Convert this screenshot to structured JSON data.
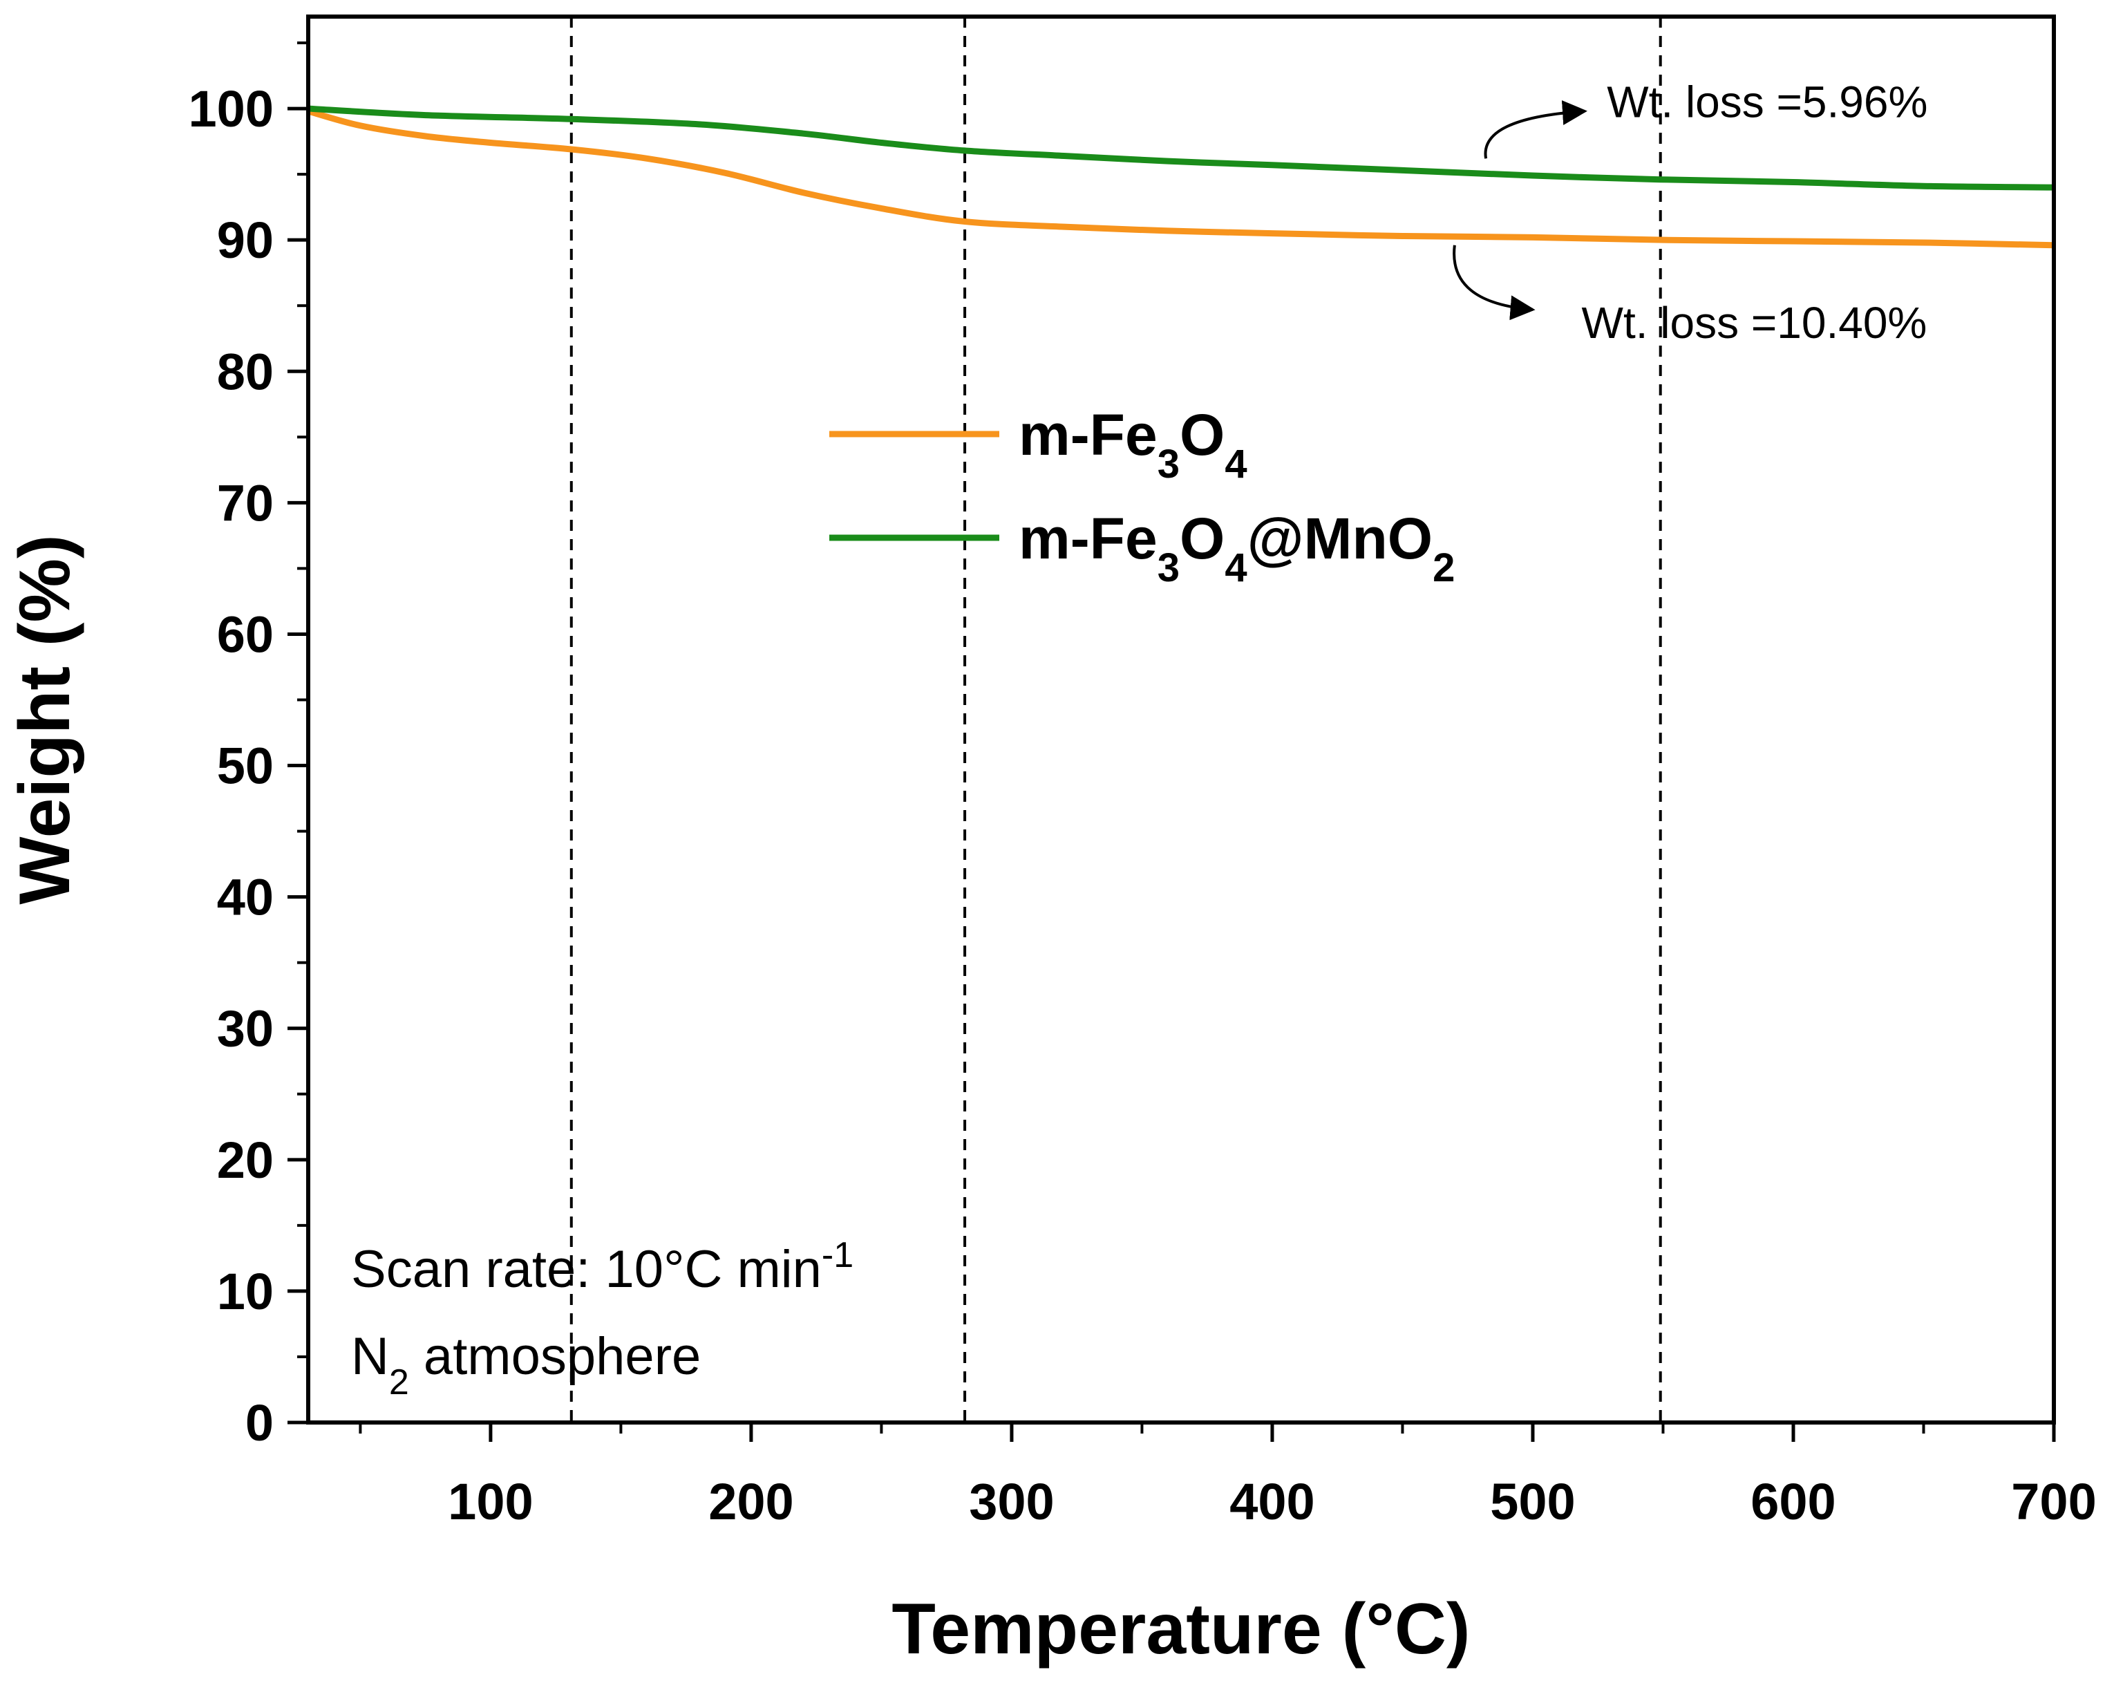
{
  "chart_data": {
    "type": "line",
    "xlabel": "Temperature (°C)",
    "ylabel": "Weight (%)",
    "xlim": [
      30,
      700
    ],
    "ylim": [
      0,
      107
    ],
    "x_ticks": [
      100,
      200,
      300,
      400,
      500,
      600,
      700
    ],
    "y_ticks": [
      0,
      10,
      20,
      30,
      40,
      50,
      60,
      70,
      80,
      90,
      100
    ],
    "x_tick_labels": [
      "100",
      "200",
      "300",
      "400",
      "500",
      "600",
      "700"
    ],
    "y_tick_labels": [
      "0",
      "10",
      "20",
      "30",
      "40",
      "50",
      "60",
      "70",
      "80",
      "90",
      "100"
    ],
    "grid": false,
    "legend_position": "center-top",
    "reference_lines_x": [
      131,
      282,
      549
    ],
    "series": [
      {
        "name": "m-Fe3O4",
        "label_parts": {
          "prefix": "m-Fe",
          "sub1": "3",
          "mid": "O",
          "sub2": "4",
          "suffix": ""
        },
        "color": "#F7941D",
        "x": [
          30,
          50,
          75,
          100,
          131,
          160,
          190,
          220,
          250,
          282,
          320,
          360,
          400,
          450,
          500,
          550,
          600,
          650,
          700
        ],
        "y": [
          99.8,
          98.7,
          97.9,
          97.4,
          96.9,
          96.2,
          95.1,
          93.6,
          92.4,
          91.4,
          91.0,
          90.7,
          90.5,
          90.3,
          90.2,
          90.0,
          89.9,
          89.8,
          89.6
        ]
      },
      {
        "name": "m-Fe3O4@MnO2",
        "label_parts": {
          "prefix": "m-Fe",
          "sub1": "3",
          "mid": "O",
          "sub2": "4",
          "suffix": "@MnO",
          "sub3": "2"
        },
        "color": "#1A8C1A",
        "x": [
          30,
          75,
          131,
          180,
          220,
          250,
          282,
          320,
          360,
          400,
          450,
          500,
          549,
          600,
          650,
          700
        ],
        "y": [
          100.0,
          99.5,
          99.2,
          98.8,
          98.1,
          97.4,
          96.8,
          96.4,
          96.0,
          95.7,
          95.3,
          94.9,
          94.6,
          94.4,
          94.1,
          94.0
        ]
      }
    ],
    "annotations": [
      {
        "text": "Wt. loss =5.96%",
        "x": 590,
        "y": 100.5,
        "arrow_from": [
          482,
          96.2
        ],
        "arrow_to": [
          520,
          99.8
        ]
      },
      {
        "text": "Wt. loss =10.40%",
        "x": 585,
        "y": 83.7,
        "arrow_from": [
          470,
          89.6
        ],
        "arrow_to": [
          500,
          84.7
        ]
      }
    ],
    "notes": [
      {
        "prefix": "Scan rate: 10°C min",
        "sup": "-1",
        "suffix": ""
      },
      {
        "prefix": "N",
        "sub": "2",
        "suffix": " atmosphere"
      }
    ]
  }
}
